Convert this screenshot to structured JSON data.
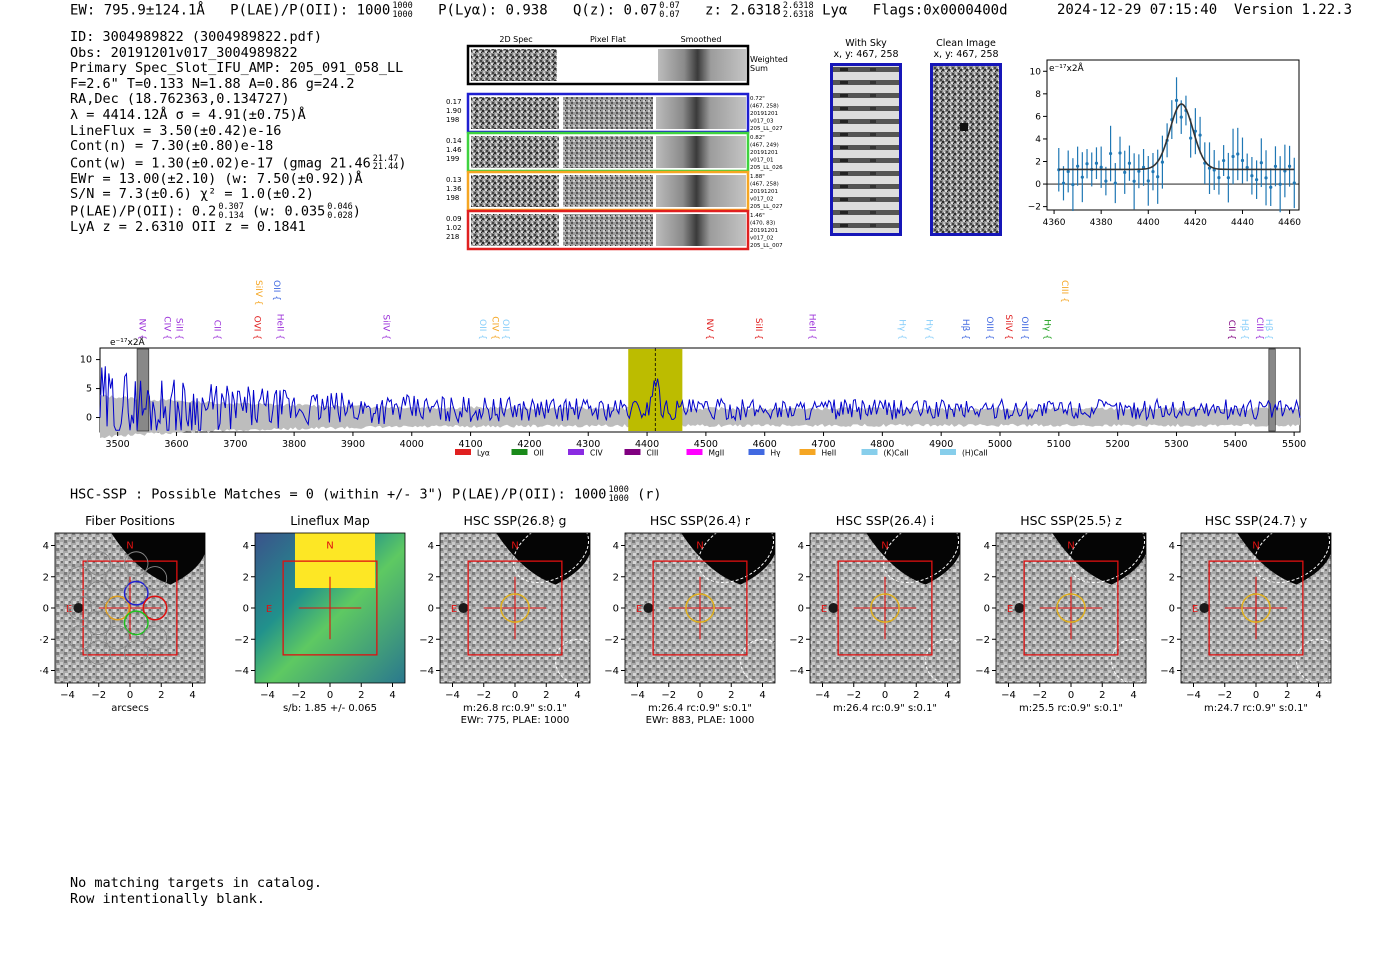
{
  "header": {
    "ew": "EW: 795.9±124.1Å",
    "plae_label": "P(LAE)/P(OII): 1000",
    "plae_hi": "1000",
    "plae_lo": "1000",
    "plya": "P(Lyα): 0.938",
    "qz_label": "Q(z): 0.07",
    "qz_hi": "0.07",
    "qz_lo": "0.07",
    "z_label": "z: 2.6318",
    "z_hi": "2.6318",
    "z_lo": "2.6318",
    "z_line": "Lyα",
    "flags": "Flags:0x0000400d",
    "datetime": "2024-12-29 07:15:40",
    "version": "Version 1.22.3"
  },
  "info": {
    "id": "ID: 3004989822 (3004989822.pdf)",
    "obs": "Obs: 20191201v017_3004989822",
    "primary": "Primary Spec_Slot_IFU_AMP: 205_091_058_LL",
    "fparams": "F=2.6\"  T=0.133  N=1.88  A=0.86  g=24.2",
    "radec": "RA,Dec (18.762363,0.134727)",
    "lambda": "λ = 4414.12Å  σ = 4.91(±0.75)Å",
    "lineflux": "LineFlux = 3.50(±0.42)e-16",
    "contn": "Cont(n) = 7.30(±0.80)e-18",
    "contw": "Cont(w) = 1.30(±0.02)e-17 (gmag 21.46",
    "contw_hi": "21.47",
    "contw_lo": "21.44",
    "ewr": "EWr = 13.00(±2.10) (w: 7.50(±0.92))Å",
    "sn": "S/N = 7.3(±0.6)  χ² = 1.0(±0.2)",
    "plae_a": "P(LAE)/P(OII): 0.2",
    "plae_a_hi": "0.307",
    "plae_a_lo": "0.134",
    "plae_b": "(w: 0.035",
    "plae_b_hi": "0.046",
    "plae_b_lo": "0.028",
    "lyaz": "LyA z = 2.6310  OII z = 0.1841"
  },
  "cutouts": {
    "col_titles": [
      "2D Spec",
      "Pixel Flat",
      "Smoothed"
    ],
    "weighted": [
      "Weighted",
      "Sum"
    ],
    "rows": [
      {
        "left": [
          "0.17",
          "1.90",
          "198"
        ],
        "right": [
          "0.72\"",
          "(467, 258)",
          "20191201",
          "v017_03",
          "205_LL_027"
        ],
        "color": "#1f1fd0"
      },
      {
        "left": [
          "0.14",
          "1.46",
          "199"
        ],
        "right": [
          "0.82\"",
          "(467, 249)",
          "20191201",
          "v017_01",
          "205_LL_026"
        ],
        "color": "#3fd23f"
      },
      {
        "left": [
          "0.13",
          "1.36",
          "198"
        ],
        "right": [
          "1.88\"",
          "(467, 258)",
          "20191201",
          "v017_02",
          "205_LL_027"
        ],
        "color": "#f5a623"
      },
      {
        "left": [
          "0.09",
          "1.02",
          "218"
        ],
        "right": [
          "1.46\"",
          "(470, 83)",
          "20191201",
          "v017_02",
          "205_LL_007"
        ],
        "color": "#e02020"
      }
    ]
  },
  "sky": {
    "with_sky_title": "With Sky",
    "with_sky_coords": "x, y: 467, 258",
    "clean_title": "Clean Image",
    "clean_coords": "x, y: 467, 258"
  },
  "zoom_chart": {
    "ylabel": "e⁻¹⁷x2Å",
    "x_ticks": [
      "4360",
      "4380",
      "4400",
      "4420",
      "4440",
      "4460"
    ],
    "y_ticks": [
      "10",
      "8",
      "6",
      "4",
      "2",
      "0",
      "−2"
    ]
  },
  "spectrum": {
    "ylabel": "e⁻¹⁷x2Å",
    "y_ticks": [
      "10",
      "5",
      "0"
    ],
    "x_ticks": [
      "3500",
      "3600",
      "3700",
      "3800",
      "3900",
      "4000",
      "4100",
      "4200",
      "4300",
      "4400",
      "4500",
      "4600",
      "4700",
      "4800",
      "4900",
      "5000",
      "5100",
      "5200",
      "5300",
      "5400",
      "5500"
    ],
    "lines_row2": [
      {
        "t": "NV",
        "c": "#9b30d9"
      },
      {
        "t": "CIV",
        "c": "#9b30d9"
      },
      {
        "t": "SiII",
        "c": "#9b30d9"
      },
      {
        "t": "CII",
        "c": "#9b30d9"
      },
      {
        "t": "OVI",
        "c": "#e02020"
      },
      {
        "t": "HeII",
        "c": "#9b30d9"
      },
      {
        "t": "SiIV",
        "c": "#9b30d9"
      },
      {
        "t": "OII",
        "c": "#87cefa"
      },
      {
        "t": "CIV",
        "c": "#f5a623"
      },
      {
        "t": "OII",
        "c": "#87cefa"
      },
      {
        "t": "NV",
        "c": "#e02020"
      },
      {
        "t": "SiII",
        "c": "#e02020"
      },
      {
        "t": "HeII",
        "c": "#9b30d9"
      },
      {
        "t": "Hγ",
        "c": "#87cefa"
      },
      {
        "t": "Hγ",
        "c": "#87cefa"
      },
      {
        "t": "Hβ",
        "c": "#4169e1"
      },
      {
        "t": "OIII",
        "c": "#4169e1"
      },
      {
        "t": "SiIV",
        "c": "#e02020"
      },
      {
        "t": "OIII",
        "c": "#4169e1"
      },
      {
        "t": "Hγ",
        "c": "#1a9e1a"
      },
      {
        "t": "CII",
        "c": "#800080"
      },
      {
        "t": "Hβ",
        "c": "#87cefa"
      },
      {
        "t": "CIII",
        "c": "#9b30d9"
      },
      {
        "t": "Hβ",
        "c": "#87cefa"
      }
    ],
    "lines_row1": [
      {
        "t": "SiIV",
        "c": "#f5a623"
      },
      {
        "t": "OII",
        "c": "#4169e1"
      },
      {
        "t": "CIII",
        "c": "#f5a623"
      }
    ],
    "legend": [
      {
        "t": "Lyα",
        "c": "#e02020"
      },
      {
        "t": "OII",
        "c": "#1a8a1a"
      },
      {
        "t": "CIV",
        "c": "#8a2be2"
      },
      {
        "t": "CIII",
        "c": "#800080"
      },
      {
        "t": "MgII",
        "c": "#ff00ff"
      },
      {
        "t": "Hγ",
        "c": "#4169e1"
      },
      {
        "t": "HeII",
        "c": "#f5a623"
      },
      {
        "t": "(K)CaII",
        "c": "#87ceeb"
      },
      {
        "t": "(H)CaII",
        "c": "#87ceeb"
      }
    ]
  },
  "hsc": {
    "summary": "HSC-SSP : Possible Matches = 0 (within +/- 3\")  P(LAE)/P(OII): 1000",
    "summary_hi": "1000",
    "summary_lo": "1000",
    "summary_tail": "(r)",
    "panels": [
      {
        "title": "Fiber Positions",
        "cap1": "arcsecs",
        "cap2": ""
      },
      {
        "title": "Lineflux Map",
        "cap1": "s/b: 1.85 +/- 0.065",
        "cap2": ""
      },
      {
        "title": "HSC SSP(26.8) g",
        "cap1": "m:26.8 rc:0.9\"  s:0.1\"",
        "cap2": "EWr: 775, PLAE: 1000"
      },
      {
        "title": "HSC SSP(26.4) r",
        "cap1": "m:26.4 rc:0.9\"  s:0.1\"",
        "cap2": "EWr: 883, PLAE: 1000"
      },
      {
        "title": "HSC SSP(26.4) i",
        "cap1": "m:26.4 rc:0.9\"  s:0.1\"",
        "cap2": ""
      },
      {
        "title": "HSC SSP(25.5) z",
        "cap1": "m:25.5 rc:0.9\"  s:0.1\"",
        "cap2": ""
      },
      {
        "title": "HSC SSP(24.7) y",
        "cap1": "m:24.7 rc:0.9\"  s:0.1\"",
        "cap2": ""
      }
    ],
    "ticks": [
      "−4",
      "−2",
      "0",
      "2",
      "4"
    ],
    "n_label": "N",
    "e_label": "E"
  },
  "footer": {
    "line1": "No matching targets in catalog.",
    "line2": "Row intentionally blank."
  }
}
